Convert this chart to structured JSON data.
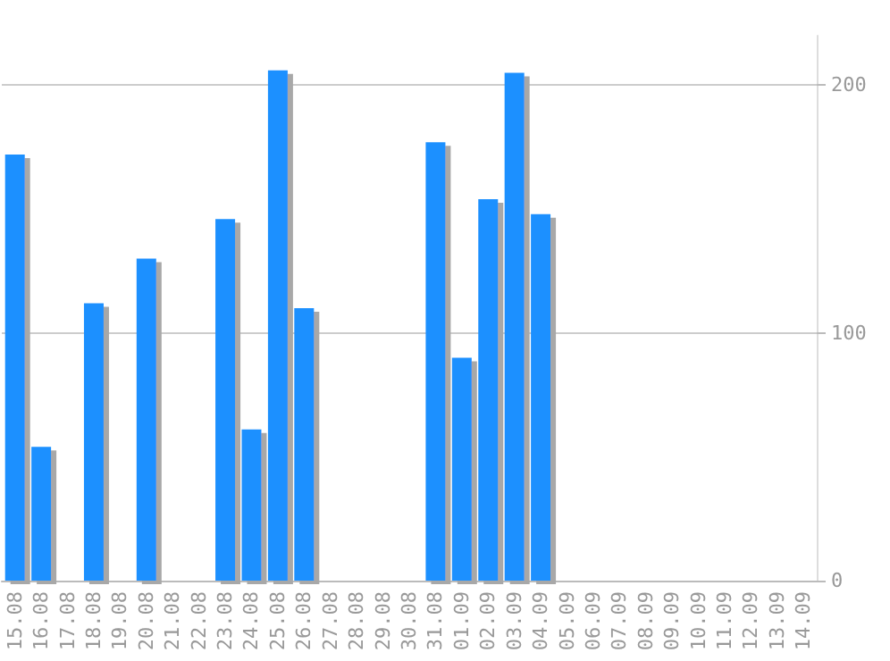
{
  "chart_data": {
    "type": "bar",
    "categories": [
      "15.08",
      "16.08",
      "17.08",
      "18.08",
      "19.08",
      "20.08",
      "21.08",
      "22.08",
      "23.08",
      "24.08",
      "25.08",
      "26.08",
      "27.08",
      "28.08",
      "29.08",
      "30.08",
      "31.08",
      "01.09",
      "02.09",
      "03.09",
      "04.09",
      "05.09",
      "06.09",
      "07.09",
      "08.09",
      "09.09",
      "10.09",
      "11.09",
      "12.09",
      "13.09",
      "14.09"
    ],
    "values": [
      172,
      54,
      0,
      112,
      0,
      130,
      0,
      0,
      146,
      61,
      206,
      110,
      0,
      0,
      0,
      0,
      177,
      90,
      154,
      205,
      148,
      0,
      0,
      0,
      0,
      0,
      0,
      0,
      0,
      0,
      0
    ],
    "color": "#1e90ff",
    "ylim": [
      0,
      220
    ],
    "yticks": [
      0,
      100,
      200
    ],
    "grid": "y"
  }
}
